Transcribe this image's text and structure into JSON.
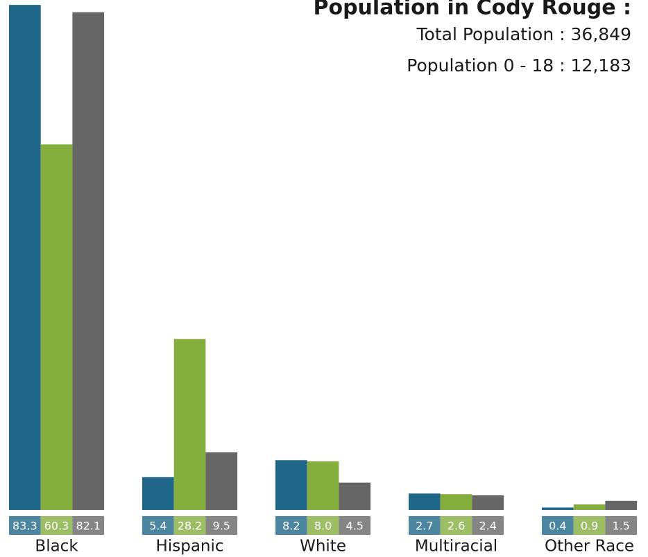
{
  "chart_data": {
    "type": "bar",
    "title": "Population in Cody Rouge :",
    "subtitle": [
      "Total Population : 36,849",
      "Population 0 - 18 : 12,183"
    ],
    "categories": [
      "Black",
      "Hispanic",
      "White",
      "Multiracial",
      "Other Race"
    ],
    "series": [
      {
        "color": "#1f6688",
        "values": [
          83.3,
          5.4,
          8.2,
          2.7,
          0.4
        ],
        "value_labels": [
          "83.3",
          "5.4",
          "8.2",
          "2.7",
          "0.4"
        ]
      },
      {
        "color": "#86ae3e",
        "values": [
          60.3,
          28.2,
          8.0,
          2.6,
          0.9
        ],
        "value_labels": [
          "60.3",
          "28.2",
          "8.0",
          "2.6",
          "0.9"
        ]
      },
      {
        "color": "#666666",
        "values": [
          82.1,
          9.5,
          4.5,
          2.4,
          1.5
        ],
        "value_labels": [
          "82.1",
          "9.5",
          "4.5",
          "2.4",
          "1.5"
        ]
      }
    ],
    "ylim": [
      0,
      84
    ]
  }
}
